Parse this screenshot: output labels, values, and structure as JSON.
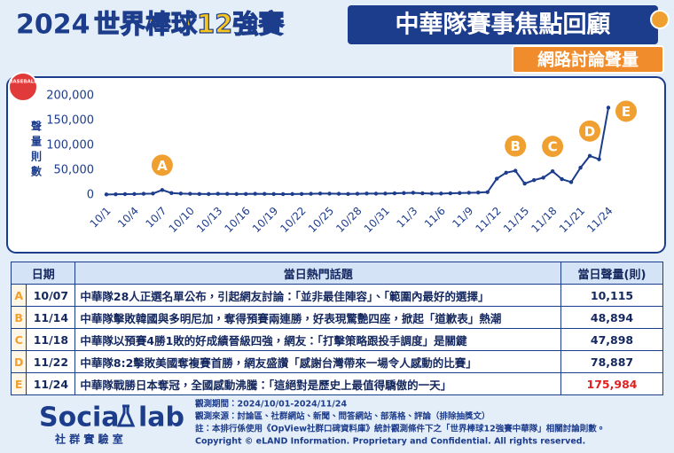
{
  "header": {
    "title_year": "2024",
    "title_event": "世界棒球12強賽",
    "title_main": "中華隊賽事焦點回顧",
    "subtitle": "網路討論聲量"
  },
  "chart_data": {
    "type": "line",
    "badge": "BASEBALL",
    "y_label": "聲量則數",
    "color": "#1c3c8c",
    "categories": [
      "10/1",
      null,
      null,
      "10/4",
      null,
      null,
      "10/7",
      null,
      null,
      "10/10",
      null,
      null,
      "10/13",
      null,
      null,
      "10/16",
      null,
      null,
      "10/19",
      null,
      null,
      "10/22",
      null,
      null,
      "10/25",
      null,
      null,
      "10/28",
      null,
      null,
      "10/31",
      null,
      null,
      "11/3",
      null,
      null,
      "11/6",
      null,
      null,
      "11/9",
      null,
      null,
      "11/12",
      null,
      null,
      "11/15",
      null,
      null,
      "11/18",
      null,
      null,
      "11/21",
      null,
      null,
      "11/24"
    ],
    "values": [
      1200,
      1500,
      1800,
      2000,
      2500,
      3000,
      10115,
      4000,
      3000,
      2500,
      2200,
      2000,
      2500,
      2300,
      2000,
      2200,
      2500,
      2300,
      2000,
      1800,
      2000,
      2200,
      2500,
      3000,
      2800,
      2500,
      2200,
      2500,
      3000,
      2800,
      3000,
      3500,
      4000,
      4500,
      3500,
      3000,
      3000,
      3500,
      4000,
      4500,
      5000,
      6000,
      33000,
      45000,
      48894,
      23000,
      30000,
      35000,
      47898,
      32000,
      26000,
      55000,
      78887,
      72000,
      175984
    ],
    "ylim": [
      0,
      200000
    ],
    "yticks": [
      0,
      {
        "value": 50000,
        "label": "50,000"
      },
      {
        "value": 100000,
        "label": "100,000"
      },
      {
        "value": 150000,
        "label": "150,000"
      },
      {
        "value": 200000,
        "label": "200,000"
      }
    ],
    "grid": false
  },
  "table": {
    "columns": [
      "日期",
      "當日熱門話題",
      "當日聲量(則)"
    ],
    "rows": [
      [
        "A",
        "10/07",
        "中華隊28人正選名單公布，引起網友討論：「並非最佳陣容」、「範圍內最好的選擇」",
        "10,115"
      ],
      [
        "B",
        "11/14",
        "中華隊擊敗韓國與多明尼加，奪得預賽兩連勝，好表現驚艷四座，掀起「道歉表」熱潮",
        "48,894"
      ],
      [
        "C",
        "11/18",
        "中華隊以預賽4勝1敗的好成績晉級四強，網友：「打擊策略跟投手調度」是關鍵",
        "47,898"
      ],
      [
        "D",
        "11/22",
        "中華隊8:2擊敗美國奪複賽首勝，網友盛讚「感謝台灣帶來一場令人感動的比賽」",
        "78,887"
      ],
      [
        "E",
        "11/24",
        "中華隊戰勝日本奪冠，全國感動沸騰：「這絕對是歷史上最值得驕傲的一天」",
        "175,984"
      ]
    ]
  },
  "footer": {
    "logo_left": "Socia",
    "logo_right": "lab",
    "logo_sub": "社 群 實 驗 室",
    "notes": [
      "觀測期間：2024/10/01-2024/11/24",
      "觀測來源：討論區、社群網站、新聞、問答網站、部落格、評論（排除抽獎文）",
      "註：本排行係使用《OpView社群口碑資料庫》統計觀測條件下之「世界棒球12強賽中華隊」相關討論則數。",
      "Copyright © eLAND Information. Proprietary and Confidential. All rights reserved."
    ]
  }
}
